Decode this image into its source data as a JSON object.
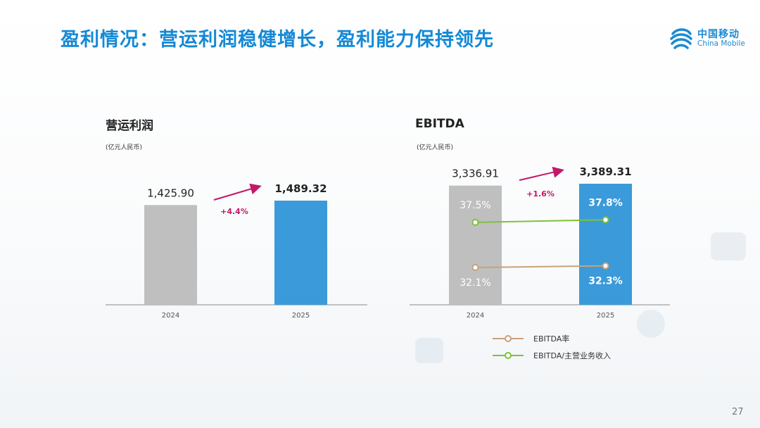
{
  "slide": {
    "title": "盈利情况：营运利润稳健增长，盈利能力保持领先",
    "page_number": "27",
    "logo": {
      "cn": "中国移动",
      "en": "China Mobile"
    }
  },
  "colors": {
    "title_blue": "#1489d6",
    "bar_2024": "#bfbfbf",
    "bar_2025": "#3b9ad9",
    "growth_arrow": "#c2186b",
    "ebitda_margin_line": "#c9a27a",
    "ebitda_revenue_line": "#7dc23b"
  },
  "chart_data": [
    {
      "type": "bar",
      "title": "营运利润",
      "unit": "(亿元人民币)",
      "categories": [
        "2024",
        "2025"
      ],
      "values": [
        1425.9,
        1489.32
      ],
      "value_labels": [
        "1,425.90",
        "1,489.32"
      ],
      "growth_label": "+4.4%",
      "ylim": [
        0,
        1800
      ]
    },
    {
      "type": "bar",
      "title": "EBITDA",
      "unit": "(亿元人民币)",
      "categories": [
        "2024",
        "2025"
      ],
      "values": [
        3336.91,
        3389.31
      ],
      "value_labels": [
        "3,336.91",
        "3,389.31"
      ],
      "growth_label": "+1.6%",
      "ylim": [
        0,
        4000
      ],
      "lines": [
        {
          "name": "EBITDA率",
          "values": [
            32.1,
            32.3
          ],
          "labels": [
            "32.1%",
            "32.3%"
          ]
        },
        {
          "name": "EBITDA/主营业务收入",
          "values": [
            37.5,
            37.8
          ],
          "labels": [
            "37.5%",
            "37.8%"
          ]
        }
      ]
    }
  ]
}
